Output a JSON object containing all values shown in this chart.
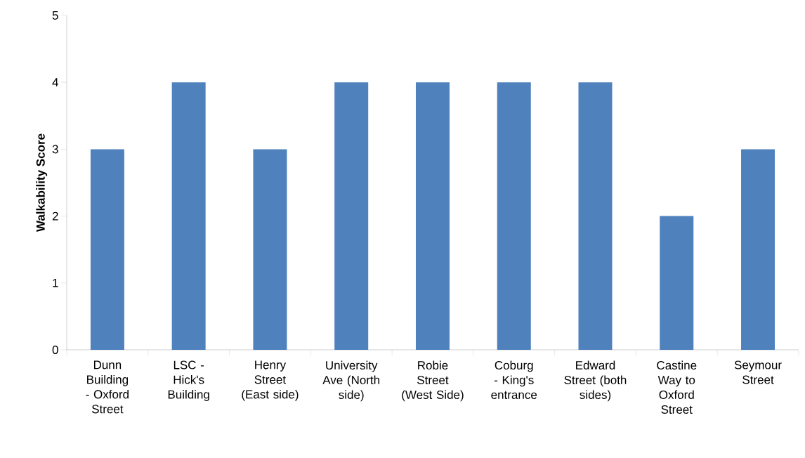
{
  "chart_data": {
    "type": "bar",
    "ylabel": "Walkability Score",
    "categories": [
      "Dunn Building - Oxford Street",
      "LSC - Hick's Building",
      "Henry Street (East side)",
      "University Ave (North side)",
      "Robie Street (West Side)",
      "Coburg - King's entrance",
      "Edward Street (both sides)",
      "Castine Way to Oxford Street",
      "Seymour Street"
    ],
    "values": [
      3,
      4,
      3,
      4,
      4,
      4,
      4,
      2,
      3
    ],
    "color": "#4f81bd",
    "ylim": [
      0,
      5
    ],
    "yticks": [
      0,
      1,
      2,
      3,
      4,
      5
    ],
    "grid": false
  }
}
